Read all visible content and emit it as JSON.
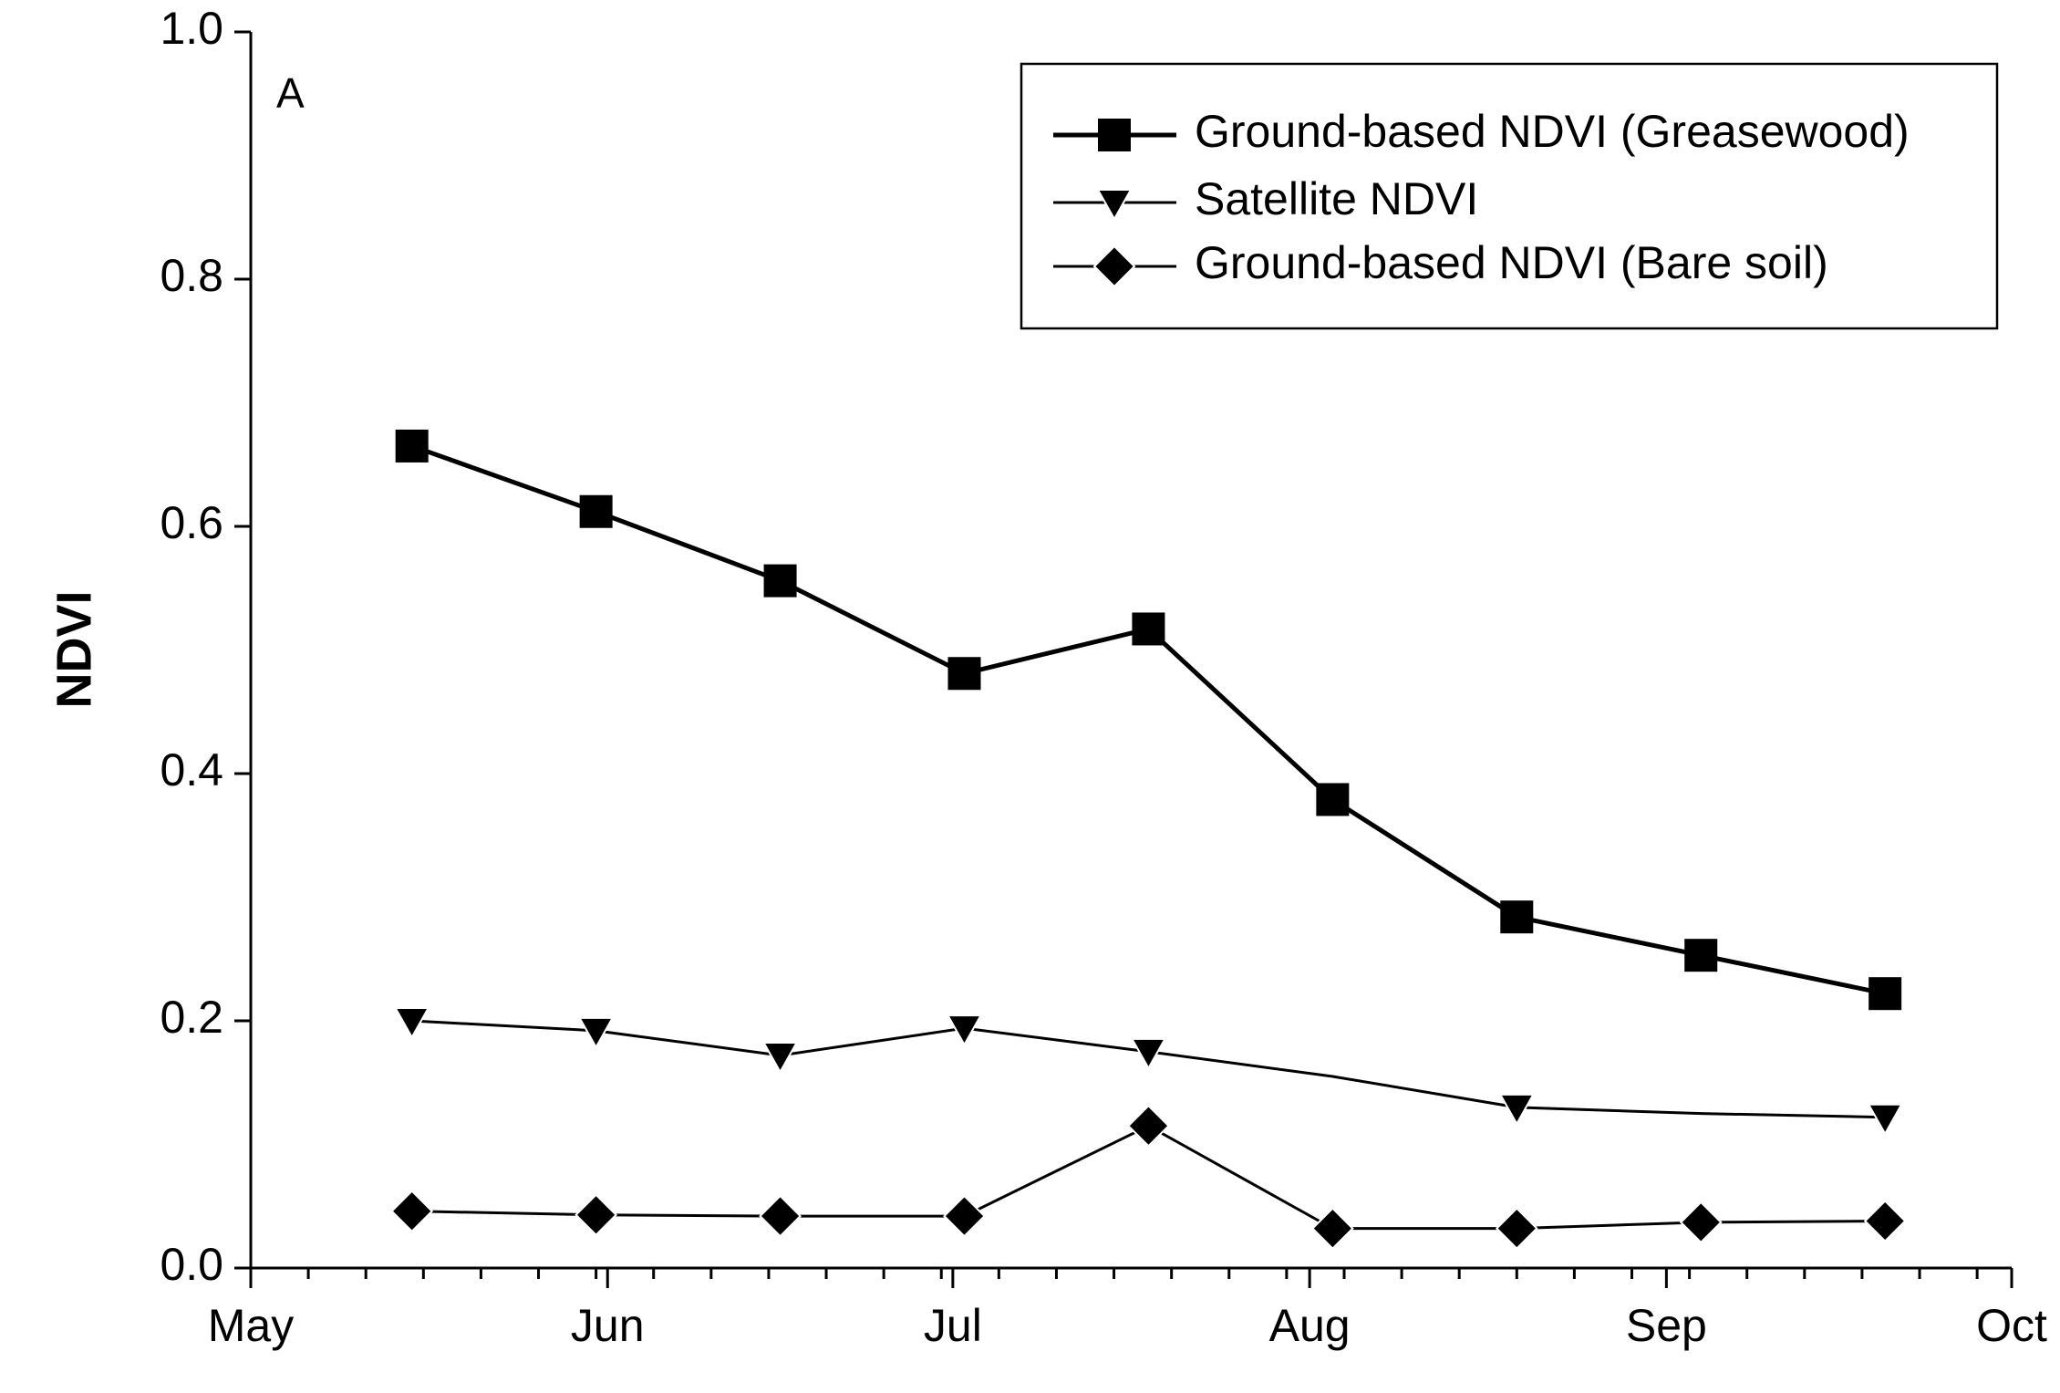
{
  "chart_data": {
    "type": "line",
    "panel_label": "A",
    "title": "",
    "xlabel": "",
    "ylabel": "NDVI",
    "ylim": [
      0.0,
      1.0
    ],
    "yticks": [
      0.0,
      0.2,
      0.4,
      0.6,
      0.8,
      1.0
    ],
    "ytick_labels": [
      "0.0",
      "0.2",
      "0.4",
      "0.6",
      "0.8",
      "1.0"
    ],
    "xlim": [
      0,
      153
    ],
    "xtick_labels": [
      {
        "label": "May",
        "day": 0
      },
      {
        "label": "Jun",
        "day": 31
      },
      {
        "label": "Jul",
        "day": 61
      },
      {
        "label": "Aug",
        "day": 92
      },
      {
        "label": "Sep",
        "day": 123
      },
      {
        "label": "Oct",
        "day": 153
      }
    ],
    "x_days": [
      14,
      30,
      46,
      62,
      78,
      94,
      110,
      126,
      142
    ],
    "legend_position": "top-right",
    "series": [
      {
        "name": "Ground-based NDVI (Greasewood)",
        "marker": "square",
        "line": "thick",
        "values": [
          0.665,
          0.612,
          0.556,
          0.481,
          0.517,
          0.379,
          0.284,
          0.253,
          0.222
        ]
      },
      {
        "name": "Satellite NDVI",
        "marker": "triangle-down",
        "line": "thin",
        "values": [
          0.2,
          0.192,
          0.172,
          0.194,
          0.175,
          0.155,
          0.13,
          0.125,
          0.122
        ]
      },
      {
        "name": "Ground-based NDVI (Bare soil)",
        "marker": "diamond",
        "line": "thin",
        "values": [
          0.046,
          0.043,
          0.042,
          0.042,
          0.115,
          0.032,
          0.032,
          0.037,
          0.038
        ]
      }
    ],
    "visible_markers": [
      [
        true,
        true,
        true,
        true,
        true,
        true,
        true,
        true,
        true
      ],
      [
        true,
        true,
        true,
        true,
        true,
        false,
        true,
        false,
        true
      ],
      [
        true,
        true,
        true,
        true,
        true,
        true,
        true,
        true,
        true
      ]
    ]
  }
}
